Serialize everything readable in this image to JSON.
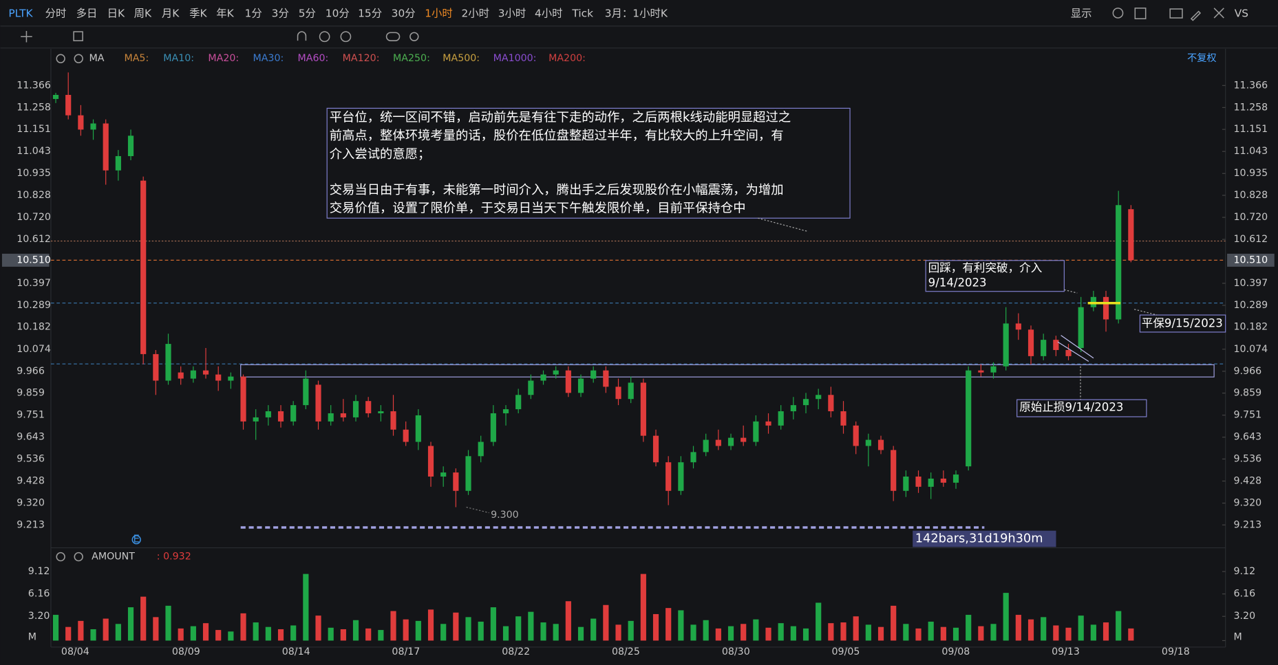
{
  "toolbar": {
    "items": [
      "PLTK",
      "分时",
      "多日",
      "日K",
      "周K",
      "月K",
      "季K",
      "年K",
      "1分",
      "3分",
      "5分",
      "10分",
      "15分",
      "30分",
      "1小时",
      "2小时",
      "3小时",
      "4小时",
      "Tick",
      "3月：1小时K"
    ],
    "active_index": 14,
    "right": [
      "显示",
      "VS"
    ]
  },
  "indicator_bar": {
    "name": "MA",
    "items": [
      {
        "label": "MA5:",
        "color": "#c8843a"
      },
      {
        "label": "MA10:",
        "color": "#3a8fb5"
      },
      {
        "label": "MA20:",
        "color": "#c94f9c"
      },
      {
        "label": "MA30:",
        "color": "#3b7bd0"
      },
      {
        "label": "MA60:",
        "color": "#b44dc4"
      },
      {
        "label": "MA120:",
        "color": "#d05050"
      },
      {
        "label": "MA250:",
        "color": "#4caf50"
      },
      {
        "label": "MA500:",
        "color": "#c8a040"
      },
      {
        "label": "MA1000:",
        "color": "#8a4dd0"
      },
      {
        "label": "MA200:",
        "color": "#d04040"
      }
    ],
    "adjust": "不复权"
  },
  "chart_data": [
    {
      "type": "candlestick",
      "up_color": "#1fa848",
      "down_color": "#e03c3c",
      "xlim": [
        -0.39,
        93.56
      ],
      "xticks": [
        {
          "value": 1.56,
          "label": "08/04"
        },
        {
          "value": 10.42,
          "label": "08/09"
        },
        {
          "value": 19.22,
          "label": "08/14"
        },
        {
          "value": 28.01,
          "label": "08/17"
        },
        {
          "value": 36.81,
          "label": "08/22"
        },
        {
          "value": 45.6,
          "label": "08/25"
        },
        {
          "value": 54.4,
          "label": "08/30"
        },
        {
          "value": 63.19,
          "label": "09/05"
        },
        {
          "value": 71.99,
          "label": "09/08"
        },
        {
          "value": 80.78,
          "label": "09/13"
        },
        {
          "value": 89.58,
          "label": "09/18"
        }
      ],
      "ylim": [
        9.113,
        11.434
      ],
      "yticks": [
        11.366,
        11.258,
        11.151,
        11.043,
        10.935,
        10.828,
        {
          "value": 10.72,
          "label": "10.720"
        },
        10.612,
        10.397,
        10.289,
        10.182,
        10.074,
        9.966,
        9.859,
        9.751,
        9.643,
        9.536,
        9.428,
        {
          "value": 9.32,
          "label": "9.320"
        },
        9.213
      ],
      "last_price": {
        "value": 10.51,
        "label": "10.510"
      },
      "hlines": [
        {
          "value": 10.604,
          "color": "#a06a50"
        },
        {
          "value": 10.51,
          "color": "#d06a30"
        },
        {
          "value": 10.3,
          "color": "#3a78b0"
        },
        {
          "value": 10.002,
          "color": "#3a78b0"
        }
      ],
      "range_box": [
        9.938,
        9.998
      ],
      "position_line": 10.3,
      "candles": [
        [
          11.3,
          11.33,
          11.28,
          11.32
        ],
        [
          11.32,
          11.43,
          11.2,
          11.22
        ],
        [
          11.22,
          11.27,
          11.12,
          11.15
        ],
        [
          11.15,
          11.2,
          11.1,
          11.18
        ],
        [
          11.18,
          11.2,
          10.88,
          10.95
        ],
        [
          10.95,
          11.05,
          10.9,
          11.02
        ],
        [
          11.02,
          11.15,
          11.0,
          11.12
        ],
        [
          10.9,
          10.92,
          10.0,
          10.05
        ],
        [
          10.05,
          10.07,
          9.85,
          9.92
        ],
        [
          9.92,
          10.15,
          9.9,
          10.1
        ],
        [
          9.96,
          9.99,
          9.9,
          9.93
        ],
        [
          9.93,
          9.99,
          9.91,
          9.97
        ],
        [
          9.97,
          10.08,
          9.93,
          9.95
        ],
        [
          9.95,
          9.99,
          9.87,
          9.92
        ],
        [
          9.92,
          9.96,
          9.88,
          9.94
        ],
        [
          9.94,
          9.95,
          9.68,
          9.72
        ],
        [
          9.72,
          9.78,
          9.63,
          9.74
        ],
        [
          9.74,
          9.8,
          9.7,
          9.77
        ],
        [
          9.77,
          9.8,
          9.69,
          9.72
        ],
        [
          9.72,
          9.82,
          9.7,
          9.8
        ],
        [
          9.8,
          9.97,
          9.78,
          9.93
        ],
        [
          9.9,
          9.92,
          9.68,
          9.72
        ],
        [
          9.72,
          9.8,
          9.7,
          9.76
        ],
        [
          9.76,
          9.83,
          9.72,
          9.74
        ],
        [
          9.74,
          9.85,
          9.72,
          9.82
        ],
        [
          9.82,
          9.84,
          9.74,
          9.76
        ],
        [
          9.76,
          9.8,
          9.72,
          9.77
        ],
        [
          9.77,
          9.85,
          9.65,
          9.68
        ],
        [
          9.68,
          9.72,
          9.6,
          9.62
        ],
        [
          9.62,
          9.78,
          9.58,
          9.75
        ],
        [
          9.6,
          9.62,
          9.4,
          9.45
        ],
        [
          9.45,
          9.5,
          9.4,
          9.47
        ],
        [
          9.47,
          9.49,
          9.3,
          9.38
        ],
        [
          9.38,
          9.58,
          9.36,
          9.55
        ],
        [
          9.55,
          9.65,
          9.52,
          9.62
        ],
        [
          9.62,
          9.8,
          9.6,
          9.76
        ],
        [
          9.76,
          9.8,
          9.7,
          9.78
        ],
        [
          9.78,
          9.88,
          9.76,
          9.85
        ],
        [
          9.85,
          9.95,
          9.83,
          9.92
        ],
        [
          9.92,
          9.97,
          9.9,
          9.95
        ],
        [
          9.95,
          9.99,
          9.93,
          9.97
        ],
        [
          9.97,
          9.99,
          9.84,
          9.86
        ],
        [
          9.86,
          9.95,
          9.84,
          9.93
        ],
        [
          9.93,
          9.99,
          9.91,
          9.97
        ],
        [
          9.97,
          9.99,
          9.86,
          9.89
        ],
        [
          9.89,
          9.93,
          9.8,
          9.83
        ],
        [
          9.83,
          9.94,
          9.81,
          9.91
        ],
        [
          9.91,
          9.93,
          9.62,
          9.65
        ],
        [
          9.65,
          9.68,
          9.5,
          9.52
        ],
        [
          9.52,
          9.55,
          9.31,
          9.38
        ],
        [
          9.38,
          9.55,
          9.36,
          9.52
        ],
        [
          9.52,
          9.6,
          9.49,
          9.57
        ],
        [
          9.57,
          9.66,
          9.55,
          9.63
        ],
        [
          9.63,
          9.68,
          9.58,
          9.6
        ],
        [
          9.6,
          9.66,
          9.58,
          9.64
        ],
        [
          9.64,
          9.7,
          9.6,
          9.62
        ],
        [
          9.62,
          9.75,
          9.6,
          9.72
        ],
        [
          9.72,
          9.76,
          9.66,
          9.7
        ],
        [
          9.7,
          9.8,
          9.68,
          9.77
        ],
        [
          9.77,
          9.84,
          9.73,
          9.8
        ],
        [
          9.8,
          9.86,
          9.76,
          9.83
        ],
        [
          9.83,
          9.88,
          9.78,
          9.85
        ],
        [
          9.85,
          9.89,
          9.74,
          9.77
        ],
        [
          9.77,
          9.82,
          9.66,
          9.7
        ],
        [
          9.7,
          9.72,
          9.56,
          9.6
        ],
        [
          9.6,
          9.66,
          9.5,
          9.63
        ],
        [
          9.63,
          9.65,
          9.56,
          9.58
        ],
        [
          9.58,
          9.6,
          9.33,
          9.38
        ],
        [
          9.38,
          9.48,
          9.35,
          9.45
        ],
        [
          9.45,
          9.48,
          9.37,
          9.4
        ],
        [
          9.4,
          9.47,
          9.34,
          9.44
        ],
        [
          9.44,
          9.48,
          9.4,
          9.42
        ],
        [
          9.42,
          9.48,
          9.39,
          9.46
        ],
        [
          9.5,
          9.99,
          9.48,
          9.97
        ],
        [
          9.97,
          10.0,
          9.94,
          9.96
        ],
        [
          9.96,
          10.01,
          9.93,
          9.99
        ],
        [
          9.99,
          10.28,
          9.97,
          10.2
        ],
        [
          10.2,
          10.25,
          10.12,
          10.17
        ],
        [
          10.17,
          10.19,
          10.0,
          10.04
        ],
        [
          10.04,
          10.15,
          10.02,
          10.12
        ],
        [
          10.12,
          10.14,
          10.04,
          10.07
        ],
        [
          10.07,
          10.1,
          10.02,
          10.04
        ],
        [
          10.08,
          10.33,
          10.06,
          10.28
        ],
        [
          10.28,
          10.36,
          10.26,
          10.33
        ],
        [
          10.33,
          10.36,
          10.16,
          10.22
        ],
        [
          10.22,
          10.85,
          10.2,
          10.78
        ],
        [
          10.76,
          10.78,
          10.5,
          10.51
        ]
      ],
      "low_label": {
        "value": 9.3,
        "label": "9.300"
      },
      "measure_label": "142bars,31d19h30m",
      "notes": {
        "main": [
          "平台位，统一区间不错，启动前先是有往下走的动作，之后两根k线动能明显超过之",
          "前高点，整体环境考量的话，股价在低位盘整超过半年，有比较大的上升空间，有",
          "介入尝试的意愿；"
        ],
        "main_2": [
          "交易当日由于有事，未能第一时间介入，腾出手之后发现股价在小幅震荡，为增加",
          "交易价值，设置了限价单，于交易日当天下午触发限价单，目前平保持仓中"
        ],
        "entry": [
          "回踩，有利突破，介入",
          "9/14/2023"
        ],
        "breakeven": "平保9/15/2023",
        "stop": "原始止损9/14/2023"
      }
    },
    {
      "type": "volume",
      "name": "AMOUNT",
      "readout": ": 0.932",
      "ylim": [
        0,
        9.89
      ],
      "yticks": [
        {
          "value": 0,
          "label": "M"
        },
        {
          "value": 3.2,
          "label": "3.20"
        },
        6.16,
        9.12
      ],
      "values": [
        3.4,
        1.8,
        2.6,
        1.5,
        2.9,
        2.2,
        4.4,
        5.8,
        3.1,
        4.6,
        1.6,
        1.9,
        2.3,
        1.4,
        1.2,
        3.6,
        2.4,
        1.8,
        1.5,
        2.0,
        8.8,
        3.3,
        1.7,
        1.5,
        2.7,
        1.6,
        1.4,
        3.9,
        2.8,
        2.6,
        4.1,
        2.2,
        3.7,
        3.1,
        2.5,
        4.4,
        1.9,
        3.2,
        3.8,
        2.4,
        2.2,
        5.2,
        1.8,
        2.9,
        4.7,
        2.1,
        2.6,
        8.8,
        3.5,
        4.3,
        4.0,
        2.1,
        2.7,
        1.6,
        1.9,
        2.2,
        2.8,
        1.7,
        2.3,
        1.9,
        1.6,
        5.0,
        2.3,
        2.4,
        3.2,
        2.1,
        1.8,
        4.6,
        2.2,
        1.6,
        2.5,
        1.8,
        1.7,
        3.4,
        1.9,
        2.2,
        6.3,
        3.4,
        2.8,
        3.1,
        2.0,
        1.7,
        3.3,
        2.1,
        2.4,
        3.9,
        1.6
      ]
    }
  ]
}
